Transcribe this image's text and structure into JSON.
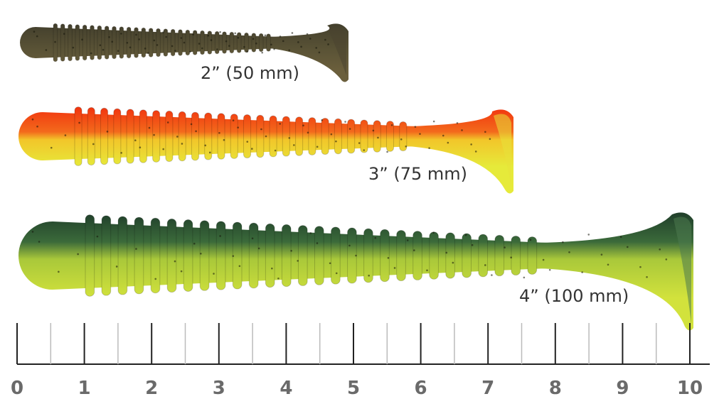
{
  "lures": [
    {
      "size_label": "2” (50 mm)"
    },
    {
      "size_label": "3” (75 mm)"
    },
    {
      "size_label": "4” (100 mm)"
    }
  ],
  "ruler": {
    "ticks": [
      0,
      1,
      2,
      3,
      4,
      5,
      6,
      7,
      8,
      9,
      10
    ]
  }
}
